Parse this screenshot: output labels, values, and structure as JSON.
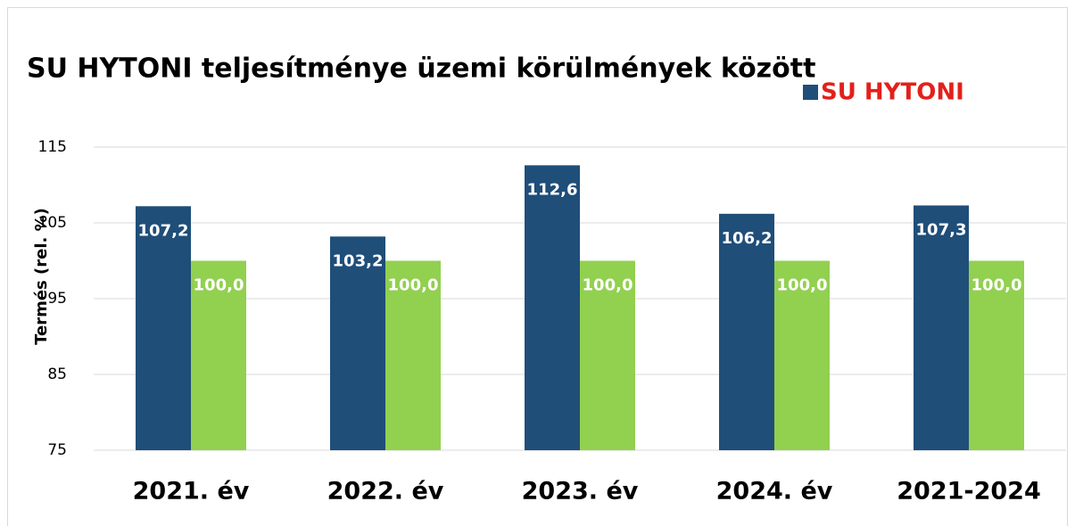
{
  "chart_data": {
    "type": "bar",
    "title": "SU HYTONI teljesítménye üzemi körülmények között",
    "y_label": "Termés (rel. %)",
    "categories": [
      "2021. év",
      "2022. év",
      "2023. év",
      "2024. év",
      "2021-2024"
    ],
    "series": [
      {
        "name": "SU HYTONI",
        "color": "#1f4e79",
        "values": [
          107.2,
          103.2,
          112.6,
          106.2,
          107.3
        ],
        "value_labels": [
          "107,2",
          "103,2",
          "112,6",
          "106,2",
          "107,3"
        ]
      },
      {
        "color": "#92d050",
        "values": [
          100.0,
          100.0,
          100.0,
          100.0,
          100.0
        ],
        "value_labels": [
          "100,0",
          "100,0",
          "100,0",
          "100,0",
          "100,0"
        ]
      }
    ],
    "ylim": [
      75,
      115
    ],
    "yticks": [
      75,
      85,
      95,
      105,
      115
    ],
    "grid": true,
    "legend": "top-right"
  }
}
